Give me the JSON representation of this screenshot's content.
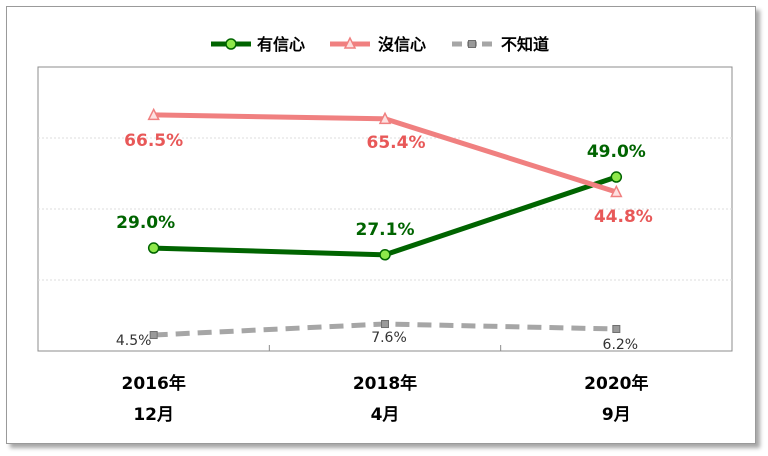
{
  "chart_data": {
    "type": "line",
    "categories": [
      [
        "2016年",
        "12月"
      ],
      [
        "2018年",
        "4月"
      ],
      [
        "2020年",
        "9月"
      ]
    ],
    "ylim": [
      0,
      80
    ],
    "grid": true,
    "legend_position": "top",
    "series": [
      {
        "name": "有信心",
        "values": [
          29.0,
          27.1,
          49.0
        ],
        "labels": [
          "29.0%",
          "27.1%",
          "49.0%"
        ],
        "color": "#006400",
        "marker_fill": "#8ee84a",
        "marker": "circle",
        "style": "solid"
      },
      {
        "name": "沒信心",
        "values": [
          66.5,
          65.4,
          44.8
        ],
        "labels": [
          "66.5%",
          "65.4%",
          "44.8%"
        ],
        "color": "#f08080",
        "label_color": "#e85858",
        "marker_fill": "#fde0e0",
        "marker": "triangle",
        "style": "solid"
      },
      {
        "name": "不知道",
        "values": [
          4.5,
          7.6,
          6.2
        ],
        "labels": [
          "4.5%",
          "7.6%",
          "6.2%"
        ],
        "color": "#a6a6a6",
        "marker_fill": "#9a9a9a",
        "marker": "square",
        "style": "dashed"
      }
    ]
  }
}
